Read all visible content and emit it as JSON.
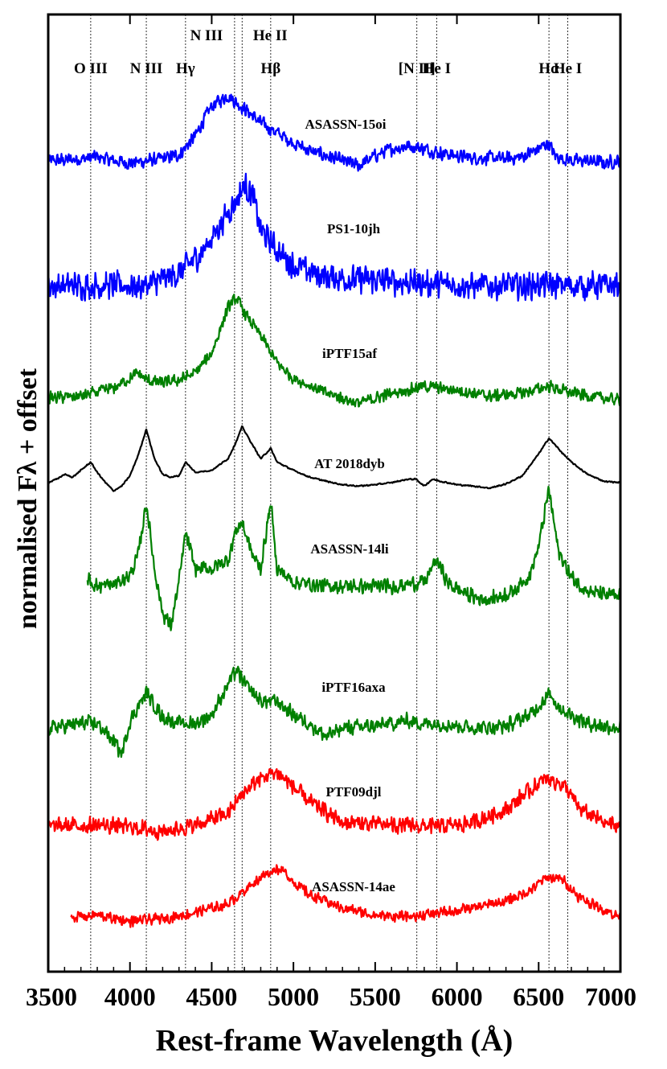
{
  "chart_data": {
    "type": "line",
    "xlabel": "Rest-frame Wavelength (Å)",
    "ylabel": "normalised  Fλ  + offset",
    "xlim": [
      3500,
      7000
    ],
    "x_ticks": [
      3500,
      4000,
      4500,
      5000,
      5500,
      6000,
      6500,
      7000
    ],
    "y_ticks": [],
    "grid": false,
    "legend": "none (series labelled directly on plot)",
    "line_markers": [
      {
        "label": "O III",
        "x": 3760,
        "row": "lower"
      },
      {
        "label": "N III",
        "x": 4100,
        "row": "lower"
      },
      {
        "label": "Hγ",
        "x": 4340,
        "row": "lower"
      },
      {
        "label": "N III",
        "x": 4640,
        "row": "upper"
      },
      {
        "label": "He II",
        "x": 4686,
        "row": "upper"
      },
      {
        "label": "Hβ",
        "x": 4861,
        "row": "lower"
      },
      {
        "label": "[N II]",
        "x": 5755,
        "row": "lower"
      },
      {
        "label": "He I",
        "x": 5876,
        "row": "lower"
      },
      {
        "label": "Hα",
        "x": 6563,
        "row": "lower"
      },
      {
        "label": "He I",
        "x": 6678,
        "row": "lower"
      }
    ],
    "series": [
      {
        "name": "ASASSN-15oi",
        "color": "#0000ff",
        "x_start": 3500,
        "x_end": 7000,
        "x": [
          3500,
          3700,
          3800,
          3900,
          4000,
          4100,
          4200,
          4300,
          4400,
          4500,
          4600,
          4650,
          4700,
          4750,
          4800,
          4900,
          5000,
          5100,
          5200,
          5300,
          5400,
          5500,
          5600,
          5700,
          5800,
          5900,
          6000,
          6100,
          6200,
          6300,
          6400,
          6500,
          6560,
          6600,
          6700,
          6800,
          6900,
          7000
        ],
        "y": [
          0,
          0.02,
          0.04,
          0.0,
          -0.02,
          0.0,
          0.02,
          0.06,
          0.25,
          0.55,
          0.65,
          0.58,
          0.52,
          0.45,
          0.38,
          0.28,
          0.18,
          0.1,
          0.05,
          0.0,
          -0.05,
          0.05,
          0.12,
          0.15,
          0.12,
          0.08,
          0.05,
          0.03,
          0.03,
          0.02,
          0.04,
          0.12,
          0.18,
          0.05,
          0.0,
          0.0,
          -0.02,
          0.0
        ],
        "noise": 0.08
      },
      {
        "name": "PS1-10jh",
        "color": "#0000ff",
        "x_start": 3500,
        "x_end": 7000,
        "x": [
          3500,
          3700,
          3900,
          4100,
          4300,
          4450,
          4550,
          4650,
          4700,
          4750,
          4800,
          4900,
          5000,
          5200,
          5500,
          5800,
          6100,
          6400,
          6600,
          6800,
          7000
        ],
        "y": [
          0,
          0,
          0,
          0,
          0.12,
          0.35,
          0.6,
          0.85,
          1.0,
          0.9,
          0.55,
          0.35,
          0.2,
          0.08,
          0.05,
          0.02,
          0.0,
          0.0,
          0.0,
          0.0,
          0.0
        ],
        "noise": 0.16
      },
      {
        "name": "iPTF15af",
        "color": "#008000",
        "x_start": 3500,
        "x_end": 7000,
        "x": [
          3500,
          3700,
          3900,
          4050,
          4100,
          4200,
          4300,
          4400,
          4500,
          4600,
          4650,
          4700,
          4800,
          4900,
          5000,
          5200,
          5400,
          5600,
          5800,
          6000,
          6200,
          6400,
          6560,
          6700,
          6900,
          7000
        ],
        "y": [
          0,
          0.02,
          0.1,
          0.25,
          0.18,
          0.15,
          0.18,
          0.25,
          0.45,
          0.9,
          1.0,
          0.85,
          0.62,
          0.35,
          0.2,
          0.05,
          -0.05,
          0.05,
          0.12,
          0.08,
          0.02,
          0.05,
          0.12,
          0.05,
          0.0,
          -0.02
        ],
        "noise": 0.07
      },
      {
        "name": "AT 2018dyb",
        "color": "#000000",
        "x_start": 3500,
        "x_end": 7000,
        "x": [
          3500,
          3550,
          3600,
          3650,
          3700,
          3760,
          3800,
          3850,
          3900,
          3950,
          4000,
          4050,
          4100,
          4150,
          4200,
          4250,
          4300,
          4340,
          4400,
          4500,
          4600,
          4650,
          4686,
          4750,
          4800,
          4861,
          4900,
          5000,
          5100,
          5200,
          5300,
          5400,
          5500,
          5600,
          5700,
          5750,
          5800,
          5850,
          5900,
          6000,
          6100,
          6200,
          6300,
          6400,
          6500,
          6563,
          6650,
          6700,
          6800,
          6900,
          7000
        ],
        "y": [
          0.0,
          0.05,
          0.12,
          0.08,
          0.18,
          0.3,
          0.15,
          0.0,
          -0.12,
          -0.05,
          0.1,
          0.4,
          0.78,
          0.35,
          0.12,
          0.08,
          0.1,
          0.3,
          0.15,
          0.18,
          0.35,
          0.6,
          0.82,
          0.55,
          0.35,
          0.5,
          0.3,
          0.18,
          0.08,
          0.02,
          -0.03,
          -0.05,
          -0.03,
          0.0,
          0.05,
          0.05,
          -0.05,
          0.05,
          0.02,
          -0.03,
          -0.05,
          -0.08,
          -0.02,
          0.1,
          0.42,
          0.65,
          0.42,
          0.3,
          0.12,
          0.02,
          0.0
        ],
        "noise": 0.012
      },
      {
        "name": "ASASSN-14li",
        "color": "#008000",
        "x_start": 3740,
        "x_end": 7000,
        "x": [
          3740,
          3800,
          3900,
          4000,
          4050,
          4100,
          4150,
          4200,
          4250,
          4300,
          4340,
          4400,
          4500,
          4600,
          4650,
          4686,
          4750,
          4800,
          4861,
          4900,
          5000,
          5200,
          5400,
          5600,
          5800,
          5876,
          5950,
          6100,
          6200,
          6350,
          6450,
          6500,
          6563,
          6620,
          6700,
          6800,
          6900,
          7000
        ],
        "y": [
          0.18,
          0.1,
          0.12,
          0.22,
          0.45,
          1.05,
          0.3,
          -0.2,
          -0.35,
          0.15,
          0.7,
          0.3,
          0.3,
          0.4,
          0.75,
          0.82,
          0.45,
          0.3,
          1.05,
          0.3,
          0.15,
          0.1,
          0.1,
          0.1,
          0.15,
          0.4,
          0.12,
          -0.02,
          -0.05,
          0.05,
          0.25,
          0.55,
          1.2,
          0.5,
          0.2,
          0.05,
          0.0,
          -0.02
        ],
        "noise": 0.1
      },
      {
        "name": "iPTF16axa",
        "color": "#008000",
        "x_start": 3500,
        "x_end": 7000,
        "x": [
          3500,
          3700,
          3800,
          3900,
          3950,
          4000,
          4100,
          4200,
          4300,
          4400,
          4500,
          4600,
          4650,
          4700,
          4800,
          4900,
          5000,
          5100,
          5200,
          5300,
          5500,
          5700,
          5800,
          5900,
          6100,
          6300,
          6450,
          6560,
          6650,
          6800,
          7000
        ],
        "y": [
          0,
          0.05,
          0.05,
          -0.15,
          -0.3,
          0.08,
          0.4,
          0.12,
          0.05,
          0.05,
          0.15,
          0.5,
          0.65,
          0.5,
          0.3,
          0.3,
          0.15,
          0.05,
          -0.1,
          0.0,
          0.02,
          0.08,
          0.05,
          0.05,
          0.0,
          0.02,
          0.15,
          0.38,
          0.2,
          0.05,
          0.0
        ],
        "noise": 0.1
      },
      {
        "name": "PTF09djl",
        "color": "#ff0000",
        "x_start": 3500,
        "x_end": 7000,
        "x": [
          3500,
          3800,
          4000,
          4200,
          4400,
          4600,
          4700,
          4800,
          4900,
          5000,
          5100,
          5300,
          5600,
          5900,
          6100,
          6300,
          6450,
          6550,
          6650,
          6750,
          6900,
          7000
        ],
        "y": [
          0,
          0.02,
          0.0,
          -0.05,
          0.02,
          0.15,
          0.4,
          0.55,
          0.62,
          0.45,
          0.28,
          0.05,
          0.02,
          0.0,
          0.05,
          0.2,
          0.42,
          0.55,
          0.48,
          0.2,
          0.05,
          0.0
        ],
        "noise": 0.11
      },
      {
        "name": "ASASSN-14ae",
        "color": "#ff0000",
        "x_start": 3640,
        "x_end": 7000,
        "x": [
          3640,
          3800,
          4000,
          4200,
          4400,
          4600,
          4700,
          4800,
          4900,
          4950,
          5000,
          5100,
          5300,
          5500,
          5700,
          5900,
          6100,
          6300,
          6450,
          6550,
          6650,
          6750,
          6900,
          7000
        ],
        "y": [
          0,
          0.02,
          -0.05,
          -0.02,
          0.05,
          0.15,
          0.3,
          0.45,
          0.55,
          0.5,
          0.4,
          0.25,
          0.1,
          0.02,
          0.0,
          0.05,
          0.1,
          0.18,
          0.3,
          0.45,
          0.42,
          0.22,
          0.08,
          0.0
        ],
        "noise": 0.07
      }
    ]
  }
}
